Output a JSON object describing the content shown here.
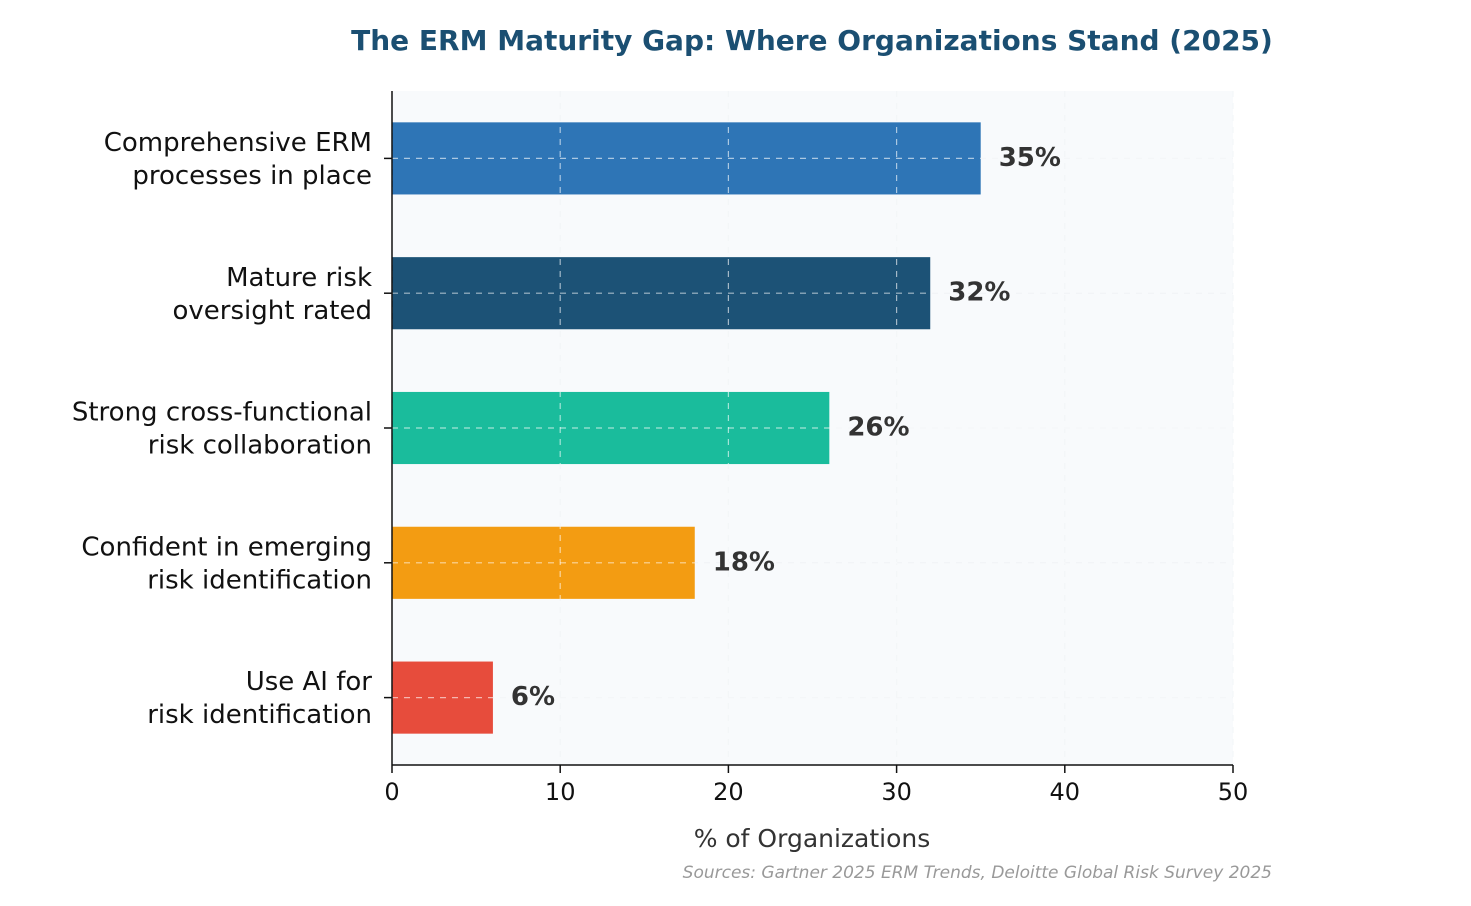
{
  "chart_data": {
    "type": "bar",
    "orientation": "horizontal",
    "title": "The ERM Maturity Gap: Where Organizations Stand (2025)",
    "xlabel": "% of Organizations",
    "ylabel": "",
    "xlim": [
      0,
      50
    ],
    "xticks": [
      0,
      10,
      20,
      30,
      40,
      50
    ],
    "grid": true,
    "categories": [
      [
        "Comprehensive ERM",
        "processes in place"
      ],
      [
        "Mature risk",
        "oversight rated"
      ],
      [
        "Strong cross-functional",
        "risk collaboration"
      ],
      [
        "Confident in emerging",
        "risk identification"
      ],
      [
        "Use AI for",
        "risk identification"
      ]
    ],
    "values": [
      35,
      32,
      26,
      18,
      6
    ],
    "value_labels": [
      "35%",
      "32%",
      "26%",
      "18%",
      "6%"
    ],
    "colors": [
      "#2e75b6",
      "#1c5276",
      "#1abc9c",
      "#f39c12",
      "#e74c3c"
    ],
    "source_note": "Sources: Gartner 2025 ERM Trends, Deloitte Global Risk Survey 2025"
  },
  "style": {
    "title_color": "#1b4f72",
    "plot_background": "#f8fafc",
    "label_text_color": "#333333",
    "source_text_color": "#999999"
  }
}
